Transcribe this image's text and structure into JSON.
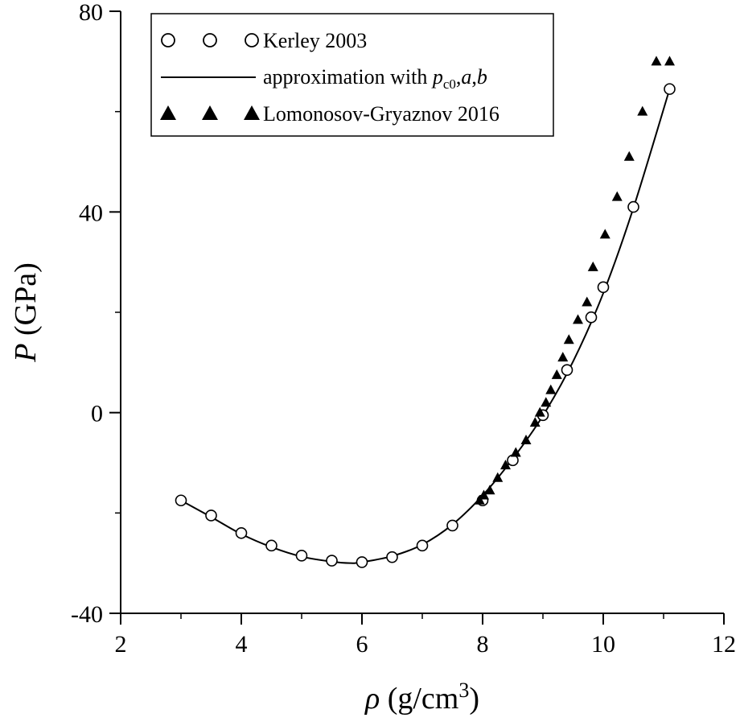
{
  "chart_data": {
    "type": "scatter",
    "xlabel": {
      "symbol": "ρ",
      "text": " (g/cm",
      "sup": "3",
      "close": ")"
    },
    "ylabel": {
      "symbol": "P",
      "text": " (GPa)"
    },
    "xlim": [
      2,
      12
    ],
    "ylim": [
      -40,
      80
    ],
    "xticks": [
      2,
      4,
      6,
      8,
      10,
      12
    ],
    "yticks": [
      -40,
      0,
      40,
      80
    ],
    "grid": false,
    "legend_position": "top-left",
    "series": [
      {
        "name": "Kerley 2003",
        "marker": "open-circle",
        "color": "#000000",
        "x": [
          3.0,
          3.5,
          4.0,
          4.5,
          5.0,
          5.5,
          6.0,
          6.5,
          7.0,
          7.5,
          8.0,
          8.5,
          9.0,
          9.4,
          9.8,
          10.0,
          10.5,
          11.1
        ],
        "y": [
          -17.5,
          -20.5,
          -24.0,
          -26.5,
          -28.5,
          -29.5,
          -29.8,
          -28.8,
          -26.5,
          -22.5,
          -17.5,
          -9.5,
          -0.5,
          8.5,
          19.0,
          25.0,
          41.0,
          64.5
        ]
      },
      {
        "name": "approximation with p_c0,a,b",
        "legend_parts": [
          "approximation with ",
          "p",
          "c0",
          ",",
          "a",
          ",",
          "b"
        ],
        "marker": "line",
        "color": "#000000",
        "x": [
          3.0,
          3.5,
          4.0,
          4.5,
          5.0,
          5.5,
          5.8,
          6.0,
          6.5,
          7.0,
          7.5,
          8.0,
          8.5,
          9.0,
          9.5,
          10.0,
          10.5,
          11.1
        ],
        "y": [
          -17.5,
          -20.8,
          -24.2,
          -26.8,
          -28.7,
          -29.7,
          -30.0,
          -29.8,
          -28.6,
          -26.3,
          -22.3,
          -16.5,
          -9.2,
          -0.6,
          10.2,
          23.8,
          40.8,
          64.5
        ]
      },
      {
        "name": "Lomonosov-Gryaznov 2016",
        "marker": "filled-triangle",
        "color": "#000000",
        "x": [
          7.95,
          8.02,
          8.12,
          8.25,
          8.38,
          8.55,
          8.72,
          8.87,
          8.95,
          9.05,
          9.13,
          9.23,
          9.33,
          9.43,
          9.58,
          9.73,
          9.83,
          10.03,
          10.23,
          10.43,
          10.65,
          10.88,
          11.1
        ],
        "y": [
          -17.5,
          -16.5,
          -15.5,
          -13.0,
          -10.5,
          -8.0,
          -5.5,
          -2.0,
          0.0,
          2.0,
          4.5,
          7.5,
          11.0,
          14.5,
          18.5,
          22.0,
          29.0,
          35.5,
          43.0,
          51.0,
          60.0,
          70.0,
          70.0
        ]
      }
    ]
  }
}
